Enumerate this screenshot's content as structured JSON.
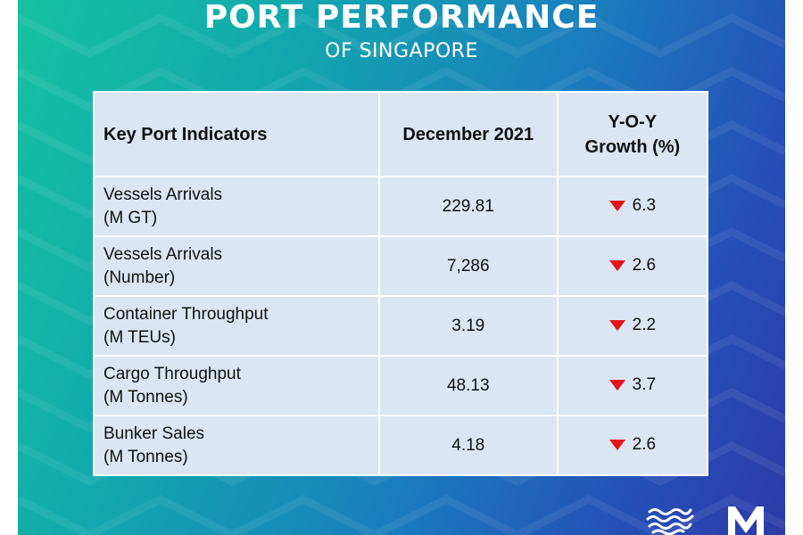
{
  "header": {
    "title": "PORT PERFORMANCE",
    "subtitle": "OF SINGAPORE"
  },
  "table": {
    "headers": {
      "indicator": "Key Port Indicators",
      "period": "December 2021",
      "growth_line1": "Y-O-Y",
      "growth_line2": "Growth (%)"
    },
    "rows": [
      {
        "name": "Vessels Arrivals",
        "unit": "(M GT)",
        "value": "229.81",
        "direction": "down",
        "growth": "6.3"
      },
      {
        "name": "Vessels Arrivals",
        "unit": "(Number)",
        "value": "7,286",
        "direction": "down",
        "growth": "2.6"
      },
      {
        "name": "Container Throughput",
        "unit": "(M TEUs)",
        "value": "3.19",
        "direction": "down",
        "growth": "2.2"
      },
      {
        "name": "Cargo Throughput",
        "unit": "(M Tonnes)",
        "value": "48.13",
        "direction": "down",
        "growth": "3.7"
      },
      {
        "name": "Bunker Sales",
        "unit": "(M Tonnes)",
        "value": "4.18",
        "direction": "down",
        "growth": "2.6"
      }
    ]
  },
  "icons": {
    "growth_indicator": "triangle-down-icon",
    "logo_left": "wave-logo-icon",
    "logo_right": "m-logo-icon"
  },
  "colors": {
    "decrease": "#e3141b",
    "table_background": "#dbe5f4",
    "gradient_start": "#17c1a0",
    "gradient_end": "#2d3aa8"
  }
}
